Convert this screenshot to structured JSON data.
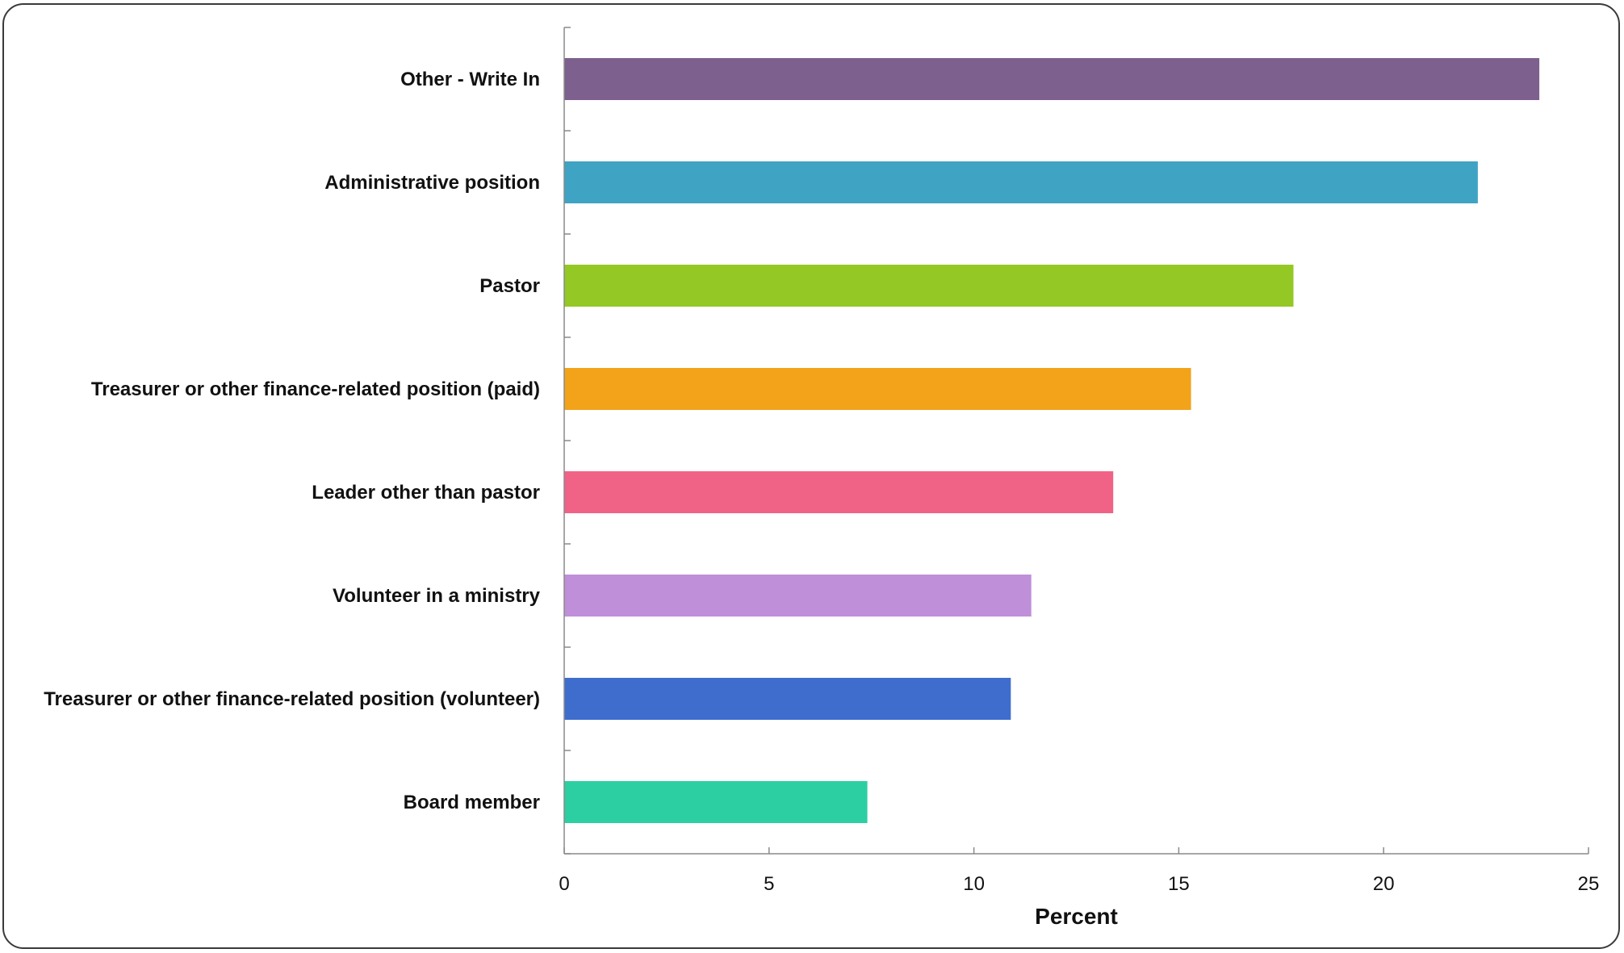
{
  "chart_data": {
    "type": "bar",
    "orientation": "horizontal",
    "categories": [
      "Other - Write In",
      "Administrative position",
      "Pastor",
      "Treasurer or other finance-related position (paid)",
      "Leader other than pastor",
      "Volunteer in a ministry",
      "Treasurer or other finance-related position (volunteer)",
      "Board member"
    ],
    "values": [
      23.8,
      22.3,
      17.8,
      15.3,
      13.4,
      11.4,
      10.9,
      7.4
    ],
    "colors": [
      "#7d608d",
      "#3fa3c4",
      "#94c825",
      "#f2a31a",
      "#f06386",
      "#bf8fd9",
      "#3e6dcd",
      "#2ccfa2"
    ],
    "xlabel": "Percent",
    "ylabel": "",
    "title": "",
    "xlim": [
      0,
      25
    ],
    "xticks": [
      0,
      5,
      10,
      15,
      20,
      25
    ],
    "grid": false,
    "legend": "none"
  }
}
